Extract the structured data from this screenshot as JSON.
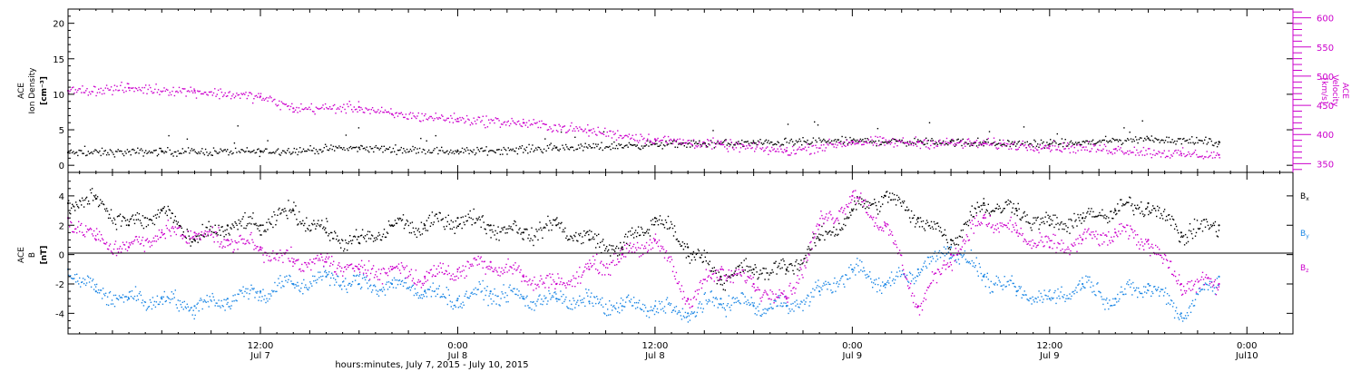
{
  "time_axis": {
    "title": "hours:minutes, July  7, 2015 - July 10, 2015",
    "ticks": [
      {
        "hour": 24,
        "time": "12:00",
        "date": "Jul 7"
      },
      {
        "hour": 36,
        "time": "0:00",
        "date": "Jul 8"
      },
      {
        "hour": 48,
        "time": "12:00",
        "date": "Jul 8"
      },
      {
        "hour": 60,
        "time": "0:00",
        "date": "Jul 9"
      },
      {
        "hour": 72,
        "time": "12:00",
        "date": "Jul 9"
      },
      {
        "hour": 84,
        "time": "0:00",
        "date": "Jul10"
      }
    ],
    "range_hours": [
      12.3,
      86.8
    ]
  },
  "panel1": {
    "left_label": [
      "ACE",
      "Ion Density",
      "[cm⁻³]"
    ],
    "right_label": [
      "ACE",
      "Velocity",
      "[km/s]"
    ],
    "left_ticks": [
      "0",
      "5",
      "10",
      "15",
      "20"
    ],
    "right_ticks": [
      "350",
      "400",
      "450",
      "500",
      "550",
      "600"
    ]
  },
  "panel2": {
    "left_label": [
      "ACE",
      "B",
      "[nT]"
    ],
    "left_ticks": [
      "-4",
      "-2",
      "0",
      "2",
      "4"
    ],
    "legend": [
      {
        "name": "Bx",
        "base": "B",
        "sub": "x",
        "color": "#000000"
      },
      {
        "name": "By",
        "base": "B",
        "sub": "y",
        "color": "#1e88e5"
      },
      {
        "name": "Bz",
        "base": "B",
        "sub": "z",
        "color": "#cc00cc"
      }
    ]
  },
  "chart_data": [
    {
      "type": "scatter",
      "xlabel": "hours:minutes, July  7, 2015 - July 10, 2015",
      "ylabel": "ACE Ion Density [cm⁻³]",
      "ylabel_right": "ACE Velocity [km/s]",
      "xlim": [
        12.3,
        86.8
      ],
      "ylim": [
        -1,
        22
      ],
      "ylim_right": [
        335,
        615
      ],
      "series": [
        {
          "color": "#000000",
          "axis": "left",
          "hours": [
            12.3,
            18,
            24,
            30,
            36,
            42,
            48,
            54,
            60,
            66,
            72,
            78,
            82.3
          ],
          "values": [
            1.8,
            2.0,
            2.0,
            2.5,
            2.0,
            2.5,
            3.0,
            3.2,
            3.5,
            3.3,
            3.0,
            3.8,
            3.3
          ]
        },
        {
          "color": "#cc00cc",
          "axis": "right",
          "hours": [
            12.3,
            16,
            20,
            24,
            26,
            30,
            32,
            36,
            40,
            44,
            48,
            52,
            56,
            60,
            64,
            68,
            72,
            76,
            80,
            82.3
          ],
          "values": [
            475,
            480,
            475,
            465,
            445,
            447,
            435,
            427,
            420,
            407,
            392,
            383,
            372,
            388,
            387,
            385,
            380,
            375,
            367,
            365
          ]
        }
      ]
    },
    {
      "type": "scatter",
      "ylabel": "ACE B [nT]",
      "xlim": [
        12.3,
        86.8
      ],
      "ylim": [
        -5.4,
        5.6
      ],
      "series": [
        {
          "name": "Bx",
          "color": "#000000",
          "hours": [
            12.3,
            14,
            16,
            18,
            20,
            22,
            24,
            26,
            28,
            30,
            32,
            34,
            36,
            38,
            40,
            42,
            44,
            46,
            48,
            50,
            52,
            54,
            56,
            58,
            60,
            62,
            64,
            66,
            68,
            70,
            72,
            74,
            76,
            78,
            80,
            82.3
          ],
          "values": [
            3.5,
            3.8,
            2.0,
            3.0,
            1.0,
            2.0,
            2.0,
            3.0,
            1.5,
            0.8,
            2.0,
            2.0,
            2.5,
            2.0,
            1.5,
            2.0,
            1.0,
            0.5,
            2.5,
            0.5,
            -1.5,
            -1.0,
            -1.0,
            1.0,
            3.0,
            4.0,
            2.5,
            1.0,
            3.5,
            3.0,
            2.0,
            2.5,
            3.0,
            3.5,
            1.5,
            2.0
          ]
        },
        {
          "name": "By",
          "color": "#1e88e5",
          "hours": [
            12.3,
            14,
            16,
            18,
            20,
            22,
            24,
            26,
            28,
            30,
            32,
            34,
            36,
            38,
            40,
            42,
            44,
            46,
            48,
            50,
            52,
            54,
            56,
            58,
            60,
            62,
            64,
            66,
            68,
            70,
            72,
            74,
            76,
            78,
            80,
            82.3
          ],
          "values": [
            -1.0,
            -2.5,
            -3.0,
            -3.0,
            -3.5,
            -3.0,
            -2.5,
            -2.0,
            -1.5,
            -2.0,
            -2.0,
            -2.5,
            -3.0,
            -2.5,
            -3.0,
            -3.0,
            -3.2,
            -3.5,
            -3.5,
            -4.0,
            -3.0,
            -3.5,
            -3.5,
            -2.5,
            -1.0,
            -2.0,
            -1.0,
            0.5,
            -1.5,
            -2.5,
            -3.0,
            -2.0,
            -3.0,
            -2.0,
            -4.0,
            -1.5
          ]
        },
        {
          "name": "Bz",
          "color": "#cc00cc",
          "hours": [
            12.3,
            14,
            16,
            18,
            20,
            22,
            24,
            26,
            28,
            30,
            32,
            34,
            36,
            38,
            40,
            42,
            44,
            46,
            48,
            50,
            52,
            54,
            56,
            58,
            60,
            62,
            64,
            66,
            68,
            70,
            72,
            74,
            76,
            78,
            80,
            82.3
          ],
          "values": [
            2.5,
            1.0,
            0.5,
            1.5,
            1.5,
            1.0,
            0.5,
            -0.5,
            -0.5,
            -1.0,
            -1.0,
            -1.5,
            -1.0,
            -0.5,
            -1.5,
            -2.0,
            -1.0,
            0.0,
            1.0,
            -3.0,
            -1.0,
            -2.0,
            -3.0,
            2.0,
            4.0,
            2.0,
            -3.5,
            0.0,
            2.5,
            1.5,
            0.5,
            1.0,
            1.5,
            1.0,
            -2.0,
            -2.0
          ]
        }
      ]
    }
  ]
}
